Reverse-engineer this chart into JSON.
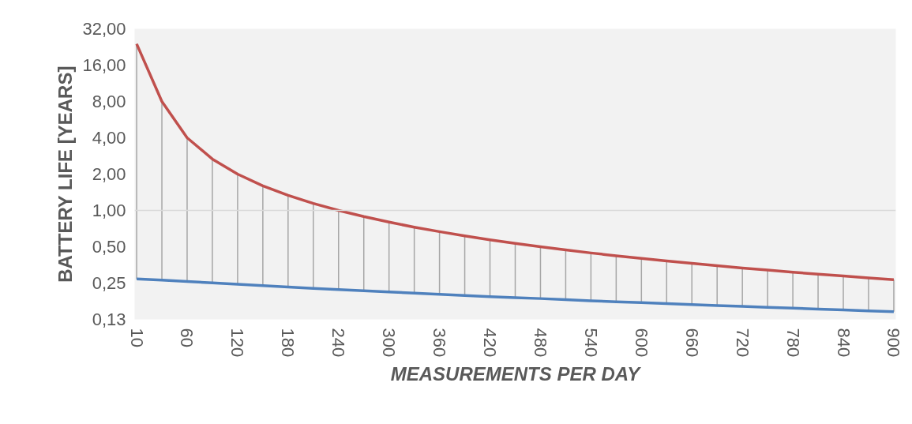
{
  "chart_data": {
    "type": "line",
    "xlabel": "MEASUREMENTS PER DAY",
    "ylabel": "BATTERY LIFE [YEARS]",
    "log": "y",
    "categories": [
      "10",
      null,
      "60",
      null,
      "120",
      null,
      "180",
      null,
      "240",
      null,
      "300",
      null,
      "360",
      null,
      "420",
      null,
      "480",
      null,
      "540",
      null,
      "600",
      null,
      "660",
      null,
      "720",
      null,
      "780",
      null,
      "840",
      null,
      "900"
    ],
    "series": [
      {
        "color": "#c0504d",
        "values": [
          24,
          8,
          4,
          2.667,
          2,
          1.6,
          1.333,
          1.143,
          1,
          0.889,
          0.8,
          0.727,
          0.667,
          0.615,
          0.571,
          0.533,
          0.5,
          0.471,
          0.444,
          0.421,
          0.4,
          0.381,
          0.364,
          0.348,
          0.333,
          0.32,
          0.308,
          0.296,
          0.286,
          0.276,
          0.267
        ],
        "errors": [
          [
            0.271,
            24
          ],
          [
            0.265,
            8
          ],
          [
            0.258,
            4
          ],
          [
            0.251,
            2.667
          ],
          [
            0.244,
            2
          ],
          [
            0.238,
            1.6
          ],
          [
            0.232,
            1.333
          ],
          [
            0.226,
            1.143
          ],
          [
            0.221,
            1
          ],
          [
            0.216,
            0.889
          ],
          [
            0.211,
            0.8
          ],
          [
            0.206,
            0.727
          ],
          [
            0.202,
            0.667
          ],
          [
            0.197,
            0.615
          ],
          [
            0.193,
            0.571
          ],
          [
            0.189,
            0.533
          ],
          [
            0.186,
            0.5
          ],
          [
            0.182,
            0.471
          ],
          [
            0.178,
            0.444
          ],
          [
            0.175,
            0.421
          ],
          [
            0.172,
            0.4
          ],
          [
            0.169,
            0.381
          ],
          [
            0.166,
            0.364
          ],
          [
            0.163,
            0.348
          ],
          [
            0.16,
            0.333
          ],
          [
            0.157,
            0.32
          ],
          [
            0.155,
            0.308
          ],
          [
            0.152,
            0.296
          ],
          [
            0.15,
            0.286
          ],
          [
            0.147,
            0.276
          ],
          [
            0.145,
            0.267
          ]
        ]
      },
      {
        "color": "#4f81bd",
        "values": [
          0.271,
          0.265,
          0.258,
          0.251,
          0.244,
          0.238,
          0.232,
          0.226,
          0.221,
          0.216,
          0.211,
          0.206,
          0.202,
          0.197,
          0.193,
          0.189,
          0.186,
          0.182,
          0.178,
          0.175,
          0.172,
          0.169,
          0.166,
          0.163,
          0.16,
          0.157,
          0.155,
          0.152,
          0.15,
          0.147,
          0.145
        ]
      }
    ],
    "ylim": [
      0.125,
      32
    ],
    "yticks": [
      {
        "value": 0.125,
        "label": "0,13"
      },
      {
        "value": 0.25,
        "label": "0,25"
      },
      {
        "value": 0.5,
        "label": "0,50"
      },
      {
        "value": 1,
        "label": "1,00"
      },
      {
        "value": 2,
        "label": "2,00"
      },
      {
        "value": 4,
        "label": "4,00"
      },
      {
        "value": 8,
        "label": "8,00"
      },
      {
        "value": 16,
        "label": "16,00"
      },
      {
        "value": 32,
        "label": "32,00"
      }
    ],
    "ref_lines": [
      {
        "axis": "y",
        "value": 1,
        "color": "#d9d9d9"
      }
    ],
    "grid": false,
    "marker": "none",
    "line_style": "solid"
  }
}
